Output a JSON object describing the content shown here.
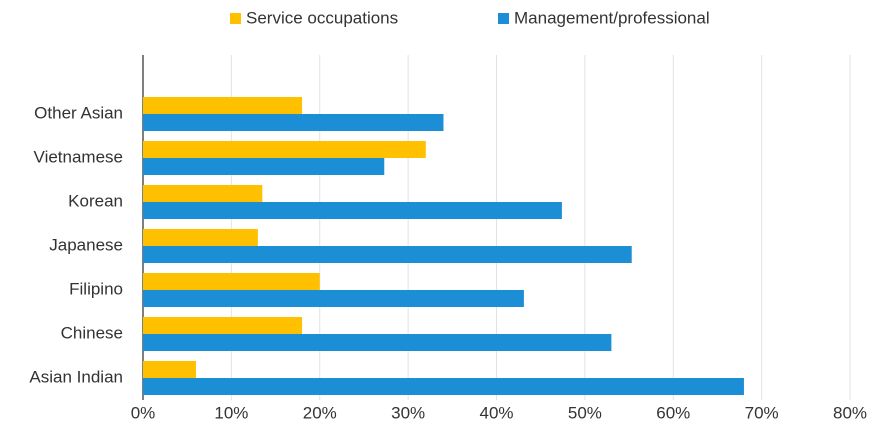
{
  "chart_data": {
    "type": "barh",
    "categories": [
      "Other Asian",
      "Vietnamese",
      "Korean",
      "Japanese",
      "Filipino",
      "Chinese",
      "Asian Indian"
    ],
    "series": [
      {
        "name": "Service occupations",
        "color": "#FFC000",
        "values": [
          18,
          32,
          13.5,
          13,
          20,
          18,
          6
        ]
      },
      {
        "name": "Management/professional",
        "color": "#1B8ED6",
        "values": [
          34,
          27.3,
          47.4,
          55.3,
          43.1,
          53,
          68
        ]
      }
    ],
    "xlim": [
      0,
      80
    ],
    "xticks": [
      {
        "value": 0,
        "label": "0%"
      },
      {
        "value": 10,
        "label": "10%"
      },
      {
        "value": 20,
        "label": "20%"
      },
      {
        "value": 30,
        "label": "30%"
      },
      {
        "value": 40,
        "label": "40%"
      },
      {
        "value": 50,
        "label": "50%"
      },
      {
        "value": 60,
        "label": "60%"
      },
      {
        "value": 70,
        "label": "70%"
      },
      {
        "value": 80,
        "label": "80%"
      }
    ],
    "grid": true,
    "legend": "top"
  }
}
